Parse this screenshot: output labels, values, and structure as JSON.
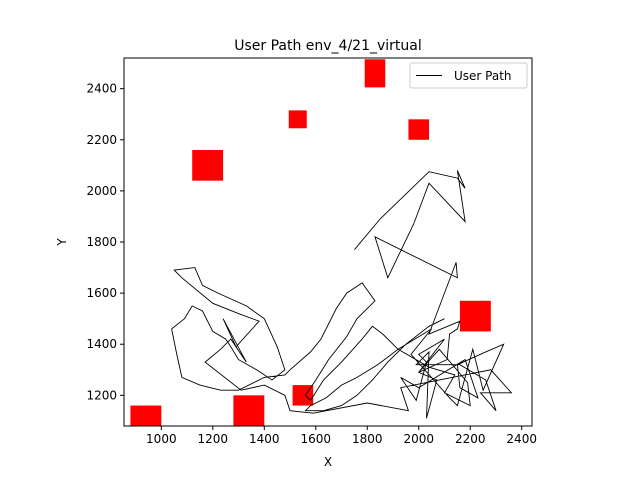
{
  "chart_data": {
    "type": "line",
    "title": "User Path env_4/21_virtual",
    "xlabel": "X",
    "ylabel": "Y",
    "xlim": [
      855,
      2440
    ],
    "ylim": [
      1080,
      2520
    ],
    "xticks": [
      1000,
      1200,
      1400,
      1600,
      1800,
      2000,
      2200,
      2400
    ],
    "yticks": [
      1200,
      1400,
      1600,
      1800,
      2000,
      2200,
      2400
    ],
    "grid": false,
    "legend": {
      "position": "top-right",
      "entries": [
        "User Path"
      ]
    },
    "colors": {
      "path": "#000000",
      "obstacle": "#ff0000"
    },
    "series": [
      {
        "name": "User Path",
        "points": [
          [
            1750,
            1770
          ],
          [
            1850,
            1890
          ],
          [
            2040,
            2075
          ],
          [
            2150,
            2050
          ],
          [
            2180,
            2010
          ],
          [
            2150,
            2080
          ],
          [
            2180,
            1880
          ],
          [
            2040,
            2030
          ],
          [
            1980,
            1870
          ],
          [
            1880,
            1660
          ],
          [
            1830,
            1820
          ],
          [
            2150,
            1660
          ],
          [
            2145,
            1720
          ],
          [
            2040,
            1440
          ],
          [
            2160,
            1490
          ],
          [
            2150,
            1460
          ],
          [
            2120,
            1440
          ],
          [
            2110,
            1340
          ],
          [
            2000,
            1290
          ],
          [
            2080,
            1380
          ],
          [
            2190,
            1250
          ],
          [
            2200,
            1160
          ],
          [
            2100,
            1210
          ],
          [
            2140,
            1280
          ],
          [
            2040,
            1310
          ],
          [
            1920,
            1380
          ],
          [
            2050,
            1460
          ],
          [
            1970,
            1360
          ],
          [
            2120,
            1190
          ],
          [
            2150,
            1160
          ],
          [
            2210,
            1380
          ],
          [
            2250,
            1220
          ],
          [
            2330,
            1400
          ],
          [
            2260,
            1370
          ],
          [
            2150,
            1320
          ],
          [
            2160,
            1230
          ],
          [
            2230,
            1190
          ],
          [
            2180,
            1340
          ],
          [
            2000,
            1230
          ],
          [
            1930,
            1270
          ],
          [
            1990,
            1180
          ],
          [
            2030,
            1330
          ],
          [
            2000,
            1360
          ],
          [
            2100,
            1420
          ],
          [
            2000,
            1290
          ],
          [
            2070,
            1260
          ],
          [
            2030,
            1110
          ],
          [
            2040,
            1370
          ],
          [
            1990,
            1320
          ],
          [
            2160,
            1320
          ],
          [
            2260,
            1260
          ],
          [
            2300,
            1140
          ],
          [
            2240,
            1210
          ],
          [
            2360,
            1210
          ],
          [
            2280,
            1300
          ],
          [
            2130,
            1270
          ],
          [
            1930,
            1230
          ],
          [
            1960,
            1140
          ],
          [
            1800,
            1170
          ],
          [
            1590,
            1130
          ],
          [
            1500,
            1140
          ],
          [
            1480,
            1200
          ],
          [
            1400,
            1240
          ],
          [
            1310,
            1220
          ],
          [
            1170,
            1330
          ],
          [
            1230,
            1380
          ],
          [
            1270,
            1420
          ],
          [
            1330,
            1330
          ],
          [
            1240,
            1500
          ],
          [
            1290,
            1390
          ],
          [
            1380,
            1490
          ],
          [
            1300,
            1520
          ],
          [
            1200,
            1560
          ],
          [
            1080,
            1660
          ],
          [
            1050,
            1690
          ],
          [
            1130,
            1700
          ],
          [
            1160,
            1630
          ],
          [
            1220,
            1600
          ],
          [
            1330,
            1550
          ],
          [
            1400,
            1500
          ],
          [
            1450,
            1390
          ],
          [
            1480,
            1300
          ],
          [
            1430,
            1260
          ],
          [
            1370,
            1300
          ],
          [
            1300,
            1340
          ],
          [
            1270,
            1390
          ],
          [
            1250,
            1420
          ],
          [
            1200,
            1450
          ],
          [
            1160,
            1530
          ],
          [
            1120,
            1550
          ],
          [
            1090,
            1500
          ],
          [
            1040,
            1460
          ],
          [
            1060,
            1360
          ],
          [
            1080,
            1270
          ],
          [
            1150,
            1240
          ],
          [
            1230,
            1220
          ],
          [
            1300,
            1220
          ],
          [
            1400,
            1270
          ],
          [
            1480,
            1280
          ],
          [
            1500,
            1300
          ],
          [
            1580,
            1370
          ],
          [
            1620,
            1420
          ],
          [
            1680,
            1540
          ],
          [
            1720,
            1600
          ],
          [
            1780,
            1640
          ],
          [
            1830,
            1570
          ],
          [
            1760,
            1500
          ],
          [
            1720,
            1430
          ],
          [
            1650,
            1340
          ],
          [
            1600,
            1260
          ],
          [
            1560,
            1200
          ],
          [
            1580,
            1180
          ],
          [
            1630,
            1260
          ],
          [
            1700,
            1330
          ],
          [
            1780,
            1420
          ],
          [
            1820,
            1470
          ],
          [
            1860,
            1440
          ],
          [
            1920,
            1380
          ],
          [
            1840,
            1320
          ],
          [
            1760,
            1270
          ],
          [
            1700,
            1240
          ],
          [
            1640,
            1190
          ],
          [
            1580,
            1160
          ],
          [
            1560,
            1140
          ],
          [
            1630,
            1140
          ],
          [
            1700,
            1160
          ],
          [
            1760,
            1200
          ],
          [
            1820,
            1260
          ],
          [
            1880,
            1330
          ],
          [
            1950,
            1400
          ],
          [
            2040,
            1470
          ],
          [
            2100,
            1500
          ]
        ]
      }
    ],
    "obstacles": [
      {
        "x": 1830,
        "y": 2460,
        "w": 80,
        "h": 110
      },
      {
        "x": 1530,
        "y": 2280,
        "w": 70,
        "h": 70
      },
      {
        "x": 2000,
        "y": 2240,
        "w": 80,
        "h": 80
      },
      {
        "x": 1180,
        "y": 2100,
        "w": 120,
        "h": 120
      },
      {
        "x": 2220,
        "y": 1510,
        "w": 120,
        "h": 120
      },
      {
        "x": 1550,
        "y": 1200,
        "w": 80,
        "h": 80
      },
      {
        "x": 940,
        "y": 1120,
        "w": 120,
        "h": 80
      },
      {
        "x": 1340,
        "y": 1140,
        "w": 120,
        "h": 120
      }
    ]
  }
}
